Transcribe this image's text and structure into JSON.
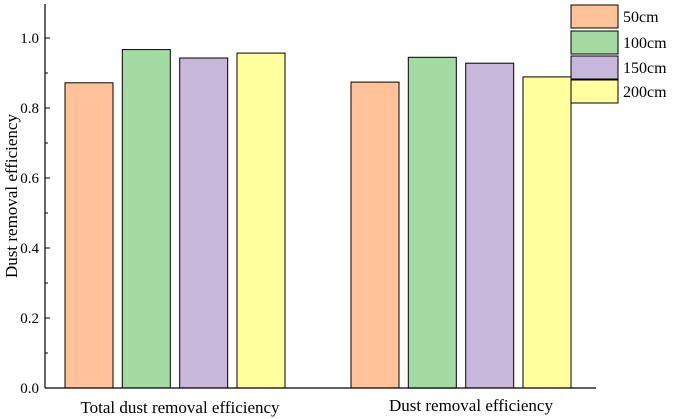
{
  "chart_data": {
    "type": "bar",
    "categories": [
      "Total dust removal efficiency",
      "Dust removal efficiency"
    ],
    "series": [
      {
        "name": "50cm",
        "color": "#FFC299",
        "values": [
          0.872,
          0.874
        ]
      },
      {
        "name": "100cm",
        "color": "#A3DBA3",
        "values": [
          0.967,
          0.945
        ]
      },
      {
        "name": "150cm",
        "color": "#C7B8DB",
        "values": [
          0.943,
          0.928
        ]
      },
      {
        "name": "200cm",
        "color": "#FFFF9E",
        "values": [
          0.957,
          0.889
        ]
      }
    ],
    "ylabel": "Dust removal efficiency",
    "ylim": [
      0,
      1.1
    ],
    "yticks": [
      0.0,
      0.2,
      0.4,
      0.6,
      0.8,
      1.0
    ],
    "ytick_labels": [
      "0.0",
      "0.2",
      "0.4",
      "0.6",
      "0.8",
      "1.0"
    ],
    "legend_position": "top-right",
    "grid": false
  }
}
